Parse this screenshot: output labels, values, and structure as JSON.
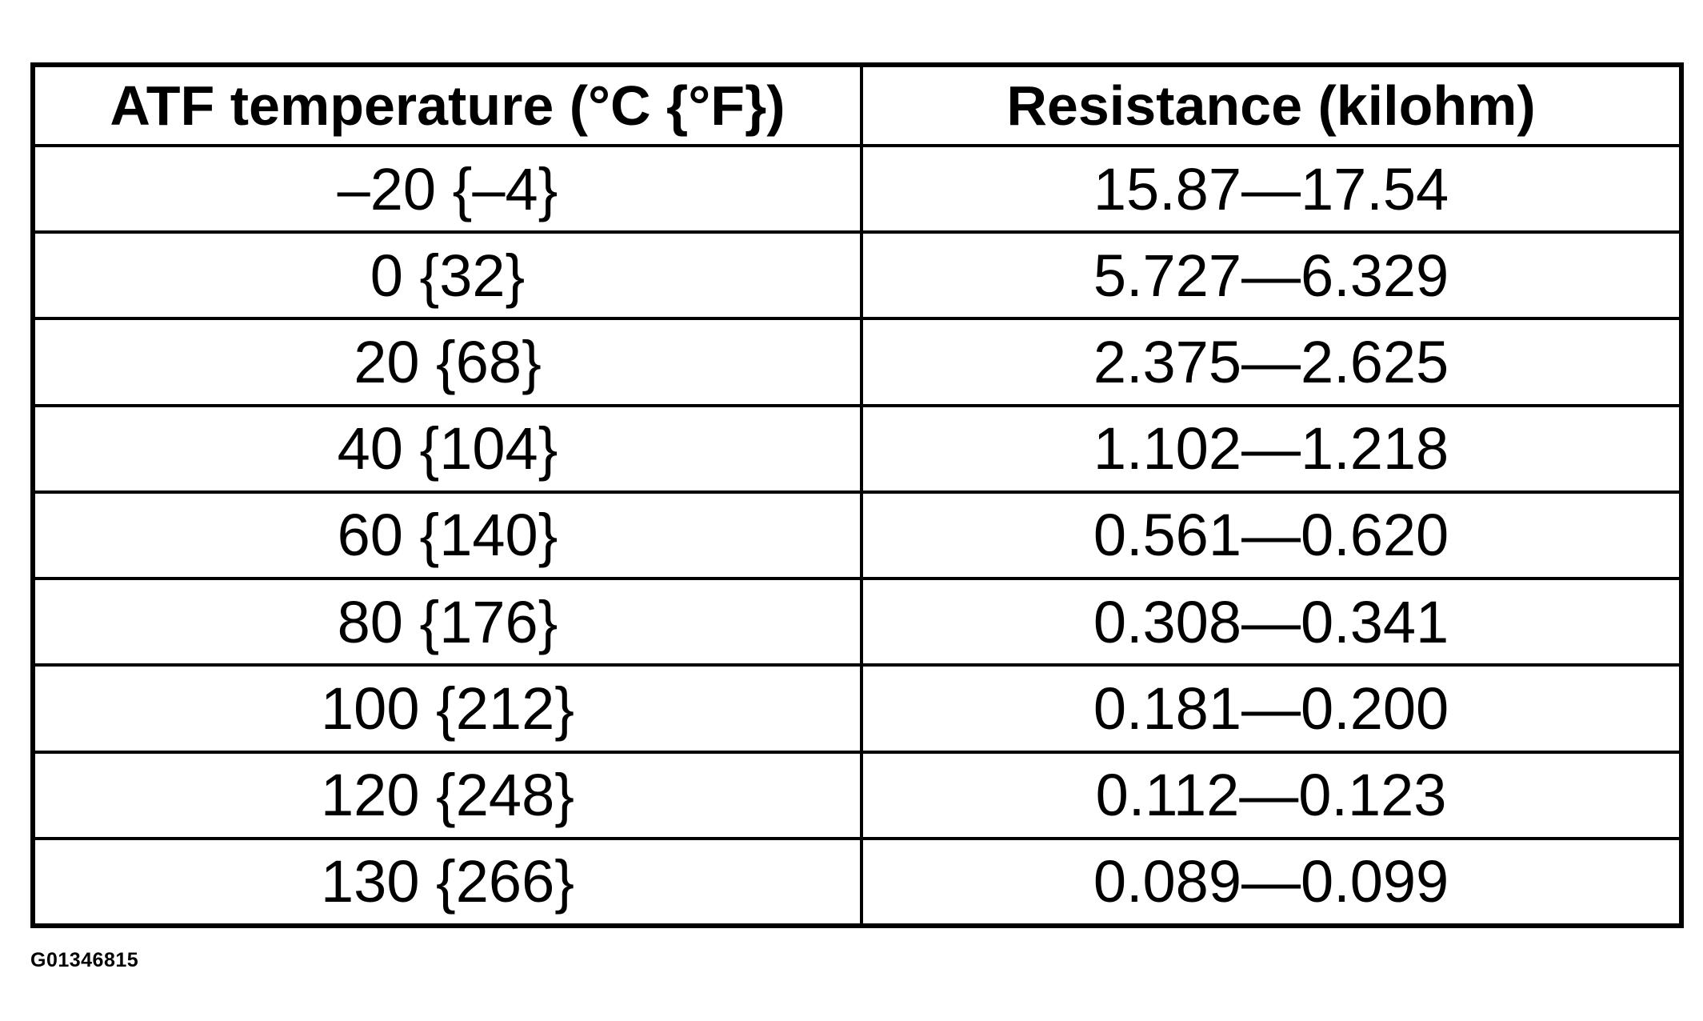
{
  "table": {
    "headers": [
      "ATF temperature (°C {°F})",
      "Resistance (kilohm)"
    ],
    "rows": [
      [
        "–20 {–4}",
        "15.87—17.54"
      ],
      [
        "0 {32}",
        "5.727—6.329"
      ],
      [
        "20 {68}",
        "2.375—2.625"
      ],
      [
        "40 {104}",
        "1.102—1.218"
      ],
      [
        "60 {140}",
        "0.561—0.620"
      ],
      [
        "80 {176}",
        "0.308—0.341"
      ],
      [
        "100 {212}",
        "0.181—0.200"
      ],
      [
        "120 {248}",
        "0.112—0.123"
      ],
      [
        "130 {266}",
        "0.089—0.099"
      ]
    ]
  },
  "figure_id": "G01346815"
}
